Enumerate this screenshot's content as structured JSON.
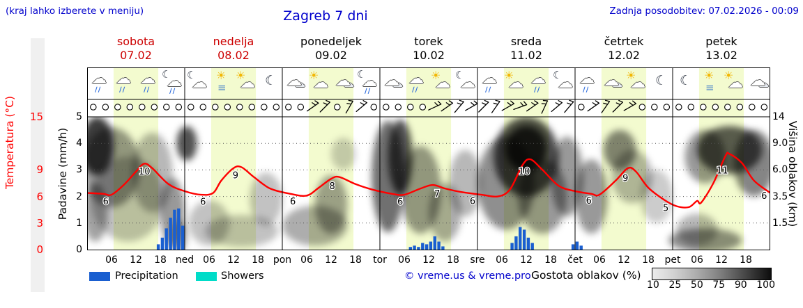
{
  "colors": {
    "accent_blue": "#0000cc",
    "weekend_red": "#cc0000",
    "temp_red": "#ff0000",
    "precip_blue": "#1a5fd0",
    "showers_cyan": "#00dcc8",
    "daylight_band": "#f3fbcf"
  },
  "header": {
    "hint": "(kraj lahko izberete v meniju)",
    "title": "Zagreb 7 dni",
    "updated": "Zadnja posodobitev: 07.02.2026 - 00:09"
  },
  "days": [
    {
      "name": "sobota",
      "date": "07.02",
      "weekend": true
    },
    {
      "name": "nedelja",
      "date": "08.02",
      "weekend": true
    },
    {
      "name": "ponedeljek",
      "date": "09.02",
      "weekend": false
    },
    {
      "name": "torek",
      "date": "10.02",
      "weekend": false
    },
    {
      "name": "sreda",
      "date": "11.02",
      "weekend": false
    },
    {
      "name": "četrtek",
      "date": "12.02",
      "weekend": false
    },
    {
      "name": "petek",
      "date": "13.02",
      "weekend": false
    }
  ],
  "axes": {
    "temp_label": "Temperatura (°C)",
    "temp_ticks": [
      "15",
      "9",
      "6",
      "3",
      "0"
    ],
    "precip_label": "Padavine (mm/h)",
    "precip_ticks": [
      "5",
      "4",
      "3",
      "2",
      "1",
      "0"
    ],
    "cloud_label": "Višina oblakov (km)",
    "cloud_ticks": [
      "14",
      "9.0",
      "6.0",
      "3.5",
      "1.5"
    ],
    "time_ticks": [
      "06",
      "12",
      "18"
    ],
    "day_abbrevs": [
      "ned",
      "pon",
      "tor",
      "sre",
      "čet",
      "pet"
    ]
  },
  "legend": {
    "precipitation": "Precipitation",
    "showers": "Showers",
    "copyright": "© vreme.us & vreme.pro",
    "cloud_density": "Gostota oblakov (%)",
    "cloud_scale": [
      "10",
      "25",
      "50",
      "75",
      "90",
      "100"
    ]
  },
  "chart_data": {
    "type": "line",
    "x_axis": {
      "unit": "hours",
      "range_hours": [
        0,
        168
      ],
      "days": 7
    },
    "daylight": {
      "start_hour": 6.5,
      "end_hour": 17.5
    },
    "temperature": {
      "color": "#ff0000",
      "unit": "°C",
      "axis_ticks": [
        0,
        3,
        6,
        9,
        15
      ],
      "points": [
        [
          0,
          6.4
        ],
        [
          4,
          6.3
        ],
        [
          6,
          6.2
        ],
        [
          9,
          7.3
        ],
        [
          12,
          8.8
        ],
        [
          14,
          9.7
        ],
        [
          16,
          9.2
        ],
        [
          20,
          7.4
        ],
        [
          24,
          6.6
        ],
        [
          28,
          6.2
        ],
        [
          31,
          6.4
        ],
        [
          33,
          7.8
        ],
        [
          36,
          9.2
        ],
        [
          38,
          9.3
        ],
        [
          41,
          8.2
        ],
        [
          45,
          6.9
        ],
        [
          50,
          6.3
        ],
        [
          54,
          6.1
        ],
        [
          57,
          7.0
        ],
        [
          60,
          8.0
        ],
        [
          62,
          8.2
        ],
        [
          66,
          7.4
        ],
        [
          70,
          6.8
        ],
        [
          75,
          6.3
        ],
        [
          78,
          6.2
        ],
        [
          82,
          6.9
        ],
        [
          85,
          7.3
        ],
        [
          88,
          6.9
        ],
        [
          92,
          6.5
        ],
        [
          97,
          6.2
        ],
        [
          101,
          6.0
        ],
        [
          104,
          6.8
        ],
        [
          107,
          9.5
        ],
        [
          109,
          10.2
        ],
        [
          112,
          9.0
        ],
        [
          116,
          7.2
        ],
        [
          120,
          6.6
        ],
        [
          124,
          6.3
        ],
        [
          126,
          6.2
        ],
        [
          130,
          7.8
        ],
        [
          133,
          9.2
        ],
        [
          135,
          8.8
        ],
        [
          138,
          7.0
        ],
        [
          142,
          5.6
        ],
        [
          145,
          4.9
        ],
        [
          148,
          4.8
        ],
        [
          150,
          5.5
        ],
        [
          151,
          5.3
        ],
        [
          154,
          7.5
        ],
        [
          157,
          10.6
        ],
        [
          158,
          10.8
        ],
        [
          161,
          9.8
        ],
        [
          164,
          7.8
        ],
        [
          168,
          6.4
        ]
      ],
      "labels": [
        [
          4.6,
          "6"
        ],
        [
          14.1,
          "10"
        ],
        [
          28.5,
          "6"
        ],
        [
          36.5,
          "9"
        ],
        [
          50.6,
          "6"
        ],
        [
          60.3,
          "8"
        ],
        [
          77,
          "6"
        ],
        [
          86.1,
          "7"
        ],
        [
          94.8,
          "6"
        ],
        [
          107.5,
          "10"
        ],
        [
          123.4,
          "6"
        ],
        [
          132.4,
          "9"
        ],
        [
          142.3,
          "5"
        ],
        [
          156.2,
          "11"
        ],
        [
          166.5,
          "6"
        ]
      ]
    },
    "precipitation": {
      "color": "#1a5fd0",
      "unit": "mm/h",
      "bars": [
        [
          17.5,
          0.2
        ],
        [
          18.5,
          0.45
        ],
        [
          19.5,
          0.8
        ],
        [
          20.5,
          1.2
        ],
        [
          21.5,
          1.5
        ],
        [
          22.5,
          1.55
        ],
        [
          23.5,
          0.9
        ],
        [
          79.5,
          0.1
        ],
        [
          80.5,
          0.15
        ],
        [
          81.5,
          0.1
        ],
        [
          82.5,
          0.25
        ],
        [
          83.5,
          0.2
        ],
        [
          84.5,
          0.3
        ],
        [
          85.5,
          0.5
        ],
        [
          86.5,
          0.3
        ],
        [
          87.5,
          0.12
        ],
        [
          104.5,
          0.25
        ],
        [
          105.5,
          0.5
        ],
        [
          106.5,
          0.85
        ],
        [
          107.5,
          0.75
        ],
        [
          108.5,
          0.45
        ],
        [
          109.5,
          0.25
        ],
        [
          119.5,
          0.2
        ],
        [
          120.5,
          0.3
        ],
        [
          121.5,
          0.15
        ]
      ]
    },
    "cloud_regions": [
      {
        "h": 2.5,
        "hw": 4,
        "f": 0.22,
        "fh": 0.22,
        "d": 0.95
      },
      {
        "h": 6,
        "hw": 7,
        "f": 0.38,
        "fh": 0.3,
        "d": 0.5
      },
      {
        "h": 2,
        "hw": 3,
        "f": 0.72,
        "fh": 0.22,
        "d": 0.45
      },
      {
        "h": 10,
        "hw": 9,
        "f": 0.62,
        "fh": 0.32,
        "d": 0.3
      },
      {
        "h": 16,
        "hw": 5,
        "f": 0.42,
        "fh": 0.3,
        "d": 0.35
      },
      {
        "h": 21,
        "hw": 3,
        "f": 0.72,
        "fh": 0.26,
        "d": 0.5
      },
      {
        "h": 22.5,
        "hw": 2,
        "f": 0.9,
        "fh": 0.12,
        "d": 0.45
      },
      {
        "h": 24.5,
        "hw": 2.5,
        "f": 0.2,
        "fh": 0.13,
        "d": 0.85
      },
      {
        "h": 30,
        "hw": 5,
        "f": 0.8,
        "fh": 0.17,
        "d": 0.3
      },
      {
        "h": 38,
        "hw": 9,
        "f": 0.86,
        "fh": 0.12,
        "d": 0.3
      },
      {
        "h": 44,
        "hw": 4,
        "f": 0.62,
        "fh": 0.2,
        "d": 0.3
      },
      {
        "h": 56,
        "hw": 8,
        "f": 0.82,
        "fh": 0.15,
        "d": 0.4
      },
      {
        "h": 60,
        "hw": 4,
        "f": 0.66,
        "fh": 0.22,
        "d": 0.45
      },
      {
        "h": 63,
        "hw": 3,
        "f": 0.28,
        "fh": 0.12,
        "d": 0.25
      },
      {
        "h": 74,
        "hw": 4,
        "f": 0.45,
        "fh": 0.42,
        "d": 0.7
      },
      {
        "h": 77,
        "hw": 3,
        "f": 0.3,
        "fh": 0.28,
        "d": 0.85
      },
      {
        "h": 82,
        "hw": 5,
        "f": 0.55,
        "fh": 0.33,
        "d": 0.5
      },
      {
        "h": 88,
        "hw": 4,
        "f": 0.72,
        "fh": 0.22,
        "d": 0.4
      },
      {
        "h": 93,
        "hw": 4,
        "f": 0.5,
        "fh": 0.25,
        "d": 0.35
      },
      {
        "h": 103,
        "hw": 7,
        "f": 0.5,
        "fh": 0.35,
        "d": 0.55
      },
      {
        "h": 108,
        "hw": 8,
        "f": 0.3,
        "fh": 0.3,
        "d": 0.85
      },
      {
        "h": 108,
        "hw": 5,
        "f": 0.24,
        "fh": 0.17,
        "d": 0.95
      },
      {
        "h": 112,
        "hw": 6,
        "f": 0.6,
        "fh": 0.28,
        "d": 0.5
      },
      {
        "h": 118,
        "hw": 4,
        "f": 0.45,
        "fh": 0.3,
        "d": 0.5
      },
      {
        "h": 124,
        "hw": 4,
        "f": 0.6,
        "fh": 0.28,
        "d": 0.5
      },
      {
        "h": 131,
        "hw": 4,
        "f": 0.25,
        "fh": 0.15,
        "d": 0.6
      },
      {
        "h": 134,
        "hw": 5,
        "f": 0.45,
        "fh": 0.2,
        "d": 0.35
      },
      {
        "h": 140,
        "hw": 4,
        "f": 0.6,
        "fh": 0.2,
        "d": 0.25
      },
      {
        "h": 150,
        "hw": 5,
        "f": 0.85,
        "fh": 0.12,
        "d": 0.35
      },
      {
        "h": 152,
        "hw": 5,
        "f": 0.3,
        "fh": 0.2,
        "d": 0.5
      },
      {
        "h": 152,
        "hw": 9,
        "f": 0.93,
        "fh": 0.09,
        "d": 0.55
      },
      {
        "h": 158,
        "hw": 8,
        "f": 0.25,
        "fh": 0.18,
        "d": 0.8
      },
      {
        "h": 164,
        "hw": 5,
        "f": 0.35,
        "fh": 0.25,
        "d": 0.6
      }
    ],
    "wind": {
      "interval_hours": 3,
      "first_hour": 1.5,
      "barbs": [
        [
          55.5,
          10
        ],
        [
          58.5,
          0
        ],
        [
          64.5,
          -15
        ],
        [
          67.5,
          5
        ],
        [
          85.5,
          20
        ],
        [
          88.5,
          10
        ],
        [
          91.5,
          -5
        ],
        [
          94.5,
          15
        ],
        [
          97.5,
          0
        ],
        [
          100.5,
          -10
        ],
        [
          103.5,
          15
        ],
        [
          106.5,
          25
        ],
        [
          109.5,
          10
        ],
        [
          112.5,
          -20
        ],
        [
          115.5,
          5
        ],
        [
          118.5,
          -5
        ],
        [
          124.5,
          10
        ],
        [
          127.5,
          -10
        ],
        [
          130.5,
          0
        ],
        [
          133.5,
          15
        ]
      ]
    },
    "icons": [
      {
        "h": 3,
        "type": "rain"
      },
      {
        "h": 9,
        "type": "rain"
      },
      {
        "h": 15,
        "type": "rain"
      },
      {
        "h": 21,
        "type": "rain-night"
      },
      {
        "h": 27,
        "type": "night-cloud"
      },
      {
        "h": 33,
        "type": "fog-sun"
      },
      {
        "h": 39,
        "type": "partly-sunny"
      },
      {
        "h": 45,
        "type": "moon"
      },
      {
        "h": 51,
        "type": "cloud"
      },
      {
        "h": 57,
        "type": "partly-sunny"
      },
      {
        "h": 63,
        "type": "cloud"
      },
      {
        "h": 69,
        "type": "rain-night"
      },
      {
        "h": 75,
        "type": "cloud"
      },
      {
        "h": 81,
        "type": "rain"
      },
      {
        "h": 87,
        "type": "partly-sunny"
      },
      {
        "h": 93,
        "type": "night-cloud"
      },
      {
        "h": 99,
        "type": "rain"
      },
      {
        "h": 105,
        "type": "partly-sunny"
      },
      {
        "h": 111,
        "type": "rain"
      },
      {
        "h": 117,
        "type": "night-cloud"
      },
      {
        "h": 123,
        "type": "rain"
      },
      {
        "h": 129,
        "type": "cloud"
      },
      {
        "h": 135,
        "type": "partly-sunny"
      },
      {
        "h": 141,
        "type": "moon"
      },
      {
        "h": 147,
        "type": "moon"
      },
      {
        "h": 153,
        "type": "fog-sun"
      },
      {
        "h": 159,
        "type": "partly-sunny"
      },
      {
        "h": 165,
        "type": "cloud"
      }
    ]
  }
}
